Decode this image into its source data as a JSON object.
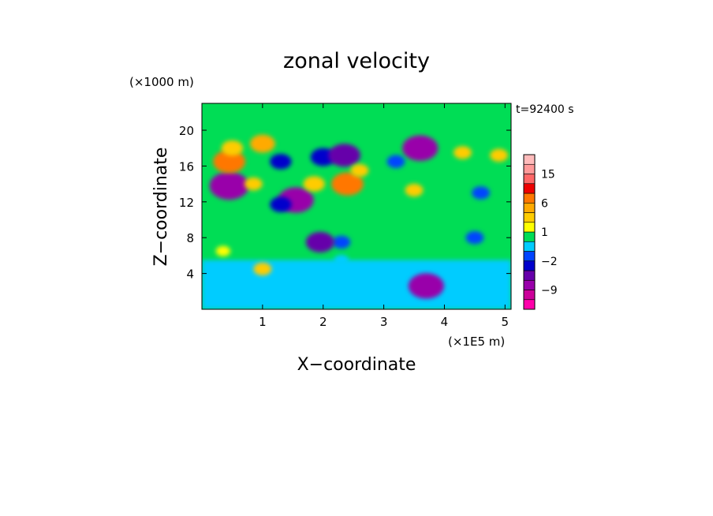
{
  "chart_data": {
    "type": "heatmap",
    "title": "zonal velocity",
    "xlabel": "X−coordinate",
    "ylabel": "Z−coordinate",
    "x_unit": "(×1E5 m)",
    "y_unit": "(×1000 m)",
    "time_label": "t=92400 s",
    "xlim": [
      0,
      5.1
    ],
    "ylim": [
      0,
      23
    ],
    "x_ticks": [
      "1",
      "2",
      "3",
      "4",
      "5"
    ],
    "y_ticks": [
      "4",
      "8",
      "12",
      "16",
      "20"
    ],
    "colorbar": {
      "levels": [
        -15,
        -12,
        -9,
        -6,
        -4,
        -2,
        -1,
        0,
        1,
        2,
        4,
        6,
        9,
        12,
        15,
        18
      ],
      "tick_labels": [
        "15",
        "6",
        "1",
        "−2",
        "−9"
      ],
      "colors": [
        "#ff00aa",
        "#cc0099",
        "#9900aa",
        "#6600aa",
        "#0000cc",
        "#0044ff",
        "#00ccff",
        "#00dd55",
        "#ffff00",
        "#ffcc00",
        "#ffaa00",
        "#ff7700",
        "#ee0000",
        "#ff6666",
        "#ff9999",
        "#ffbbbb"
      ]
    },
    "features": [
      {
        "x": 0.45,
        "z": 13.8,
        "value": -8
      },
      {
        "x": 0.45,
        "z": 16.5,
        "value": 6
      },
      {
        "x": 0.5,
        "z": 18.0,
        "value": 3
      },
      {
        "x": 0.85,
        "z": 14.0,
        "value": 2
      },
      {
        "x": 1.0,
        "z": 18.5,
        "value": 4
      },
      {
        "x": 1.3,
        "z": 16.5,
        "value": -3
      },
      {
        "x": 1.55,
        "z": 12.2,
        "value": -7
      },
      {
        "x": 1.3,
        "z": 11.7,
        "value": -3
      },
      {
        "x": 1.85,
        "z": 14.0,
        "value": 3
      },
      {
        "x": 2.0,
        "z": 17.0,
        "value": -4
      },
      {
        "x": 2.35,
        "z": 17.2,
        "value": -6
      },
      {
        "x": 2.4,
        "z": 14.0,
        "value": 6
      },
      {
        "x": 2.6,
        "z": 15.5,
        "value": 2
      },
      {
        "x": 3.6,
        "z": 18.0,
        "value": -7
      },
      {
        "x": 3.2,
        "z": 16.5,
        "value": -2
      },
      {
        "x": 3.5,
        "z": 13.3,
        "value": 2
      },
      {
        "x": 4.3,
        "z": 17.5,
        "value": 2
      },
      {
        "x": 4.9,
        "z": 17.2,
        "value": 2
      },
      {
        "x": 4.6,
        "z": 13.0,
        "value": -2
      },
      {
        "x": 4.5,
        "z": 8.0,
        "value": -2
      },
      {
        "x": 2.3,
        "z": 5.5,
        "value": -1
      },
      {
        "x": 0.35,
        "z": 6.5,
        "value": 1
      },
      {
        "x": 2.3,
        "z": 7.5,
        "value": -2
      },
      {
        "x": 1.95,
        "z": 7.5,
        "value": -5
      },
      {
        "x": 3.7,
        "z": 2.6,
        "value": -7
      },
      {
        "x": 1.0,
        "z": 4.5,
        "value": 2
      }
    ]
  }
}
